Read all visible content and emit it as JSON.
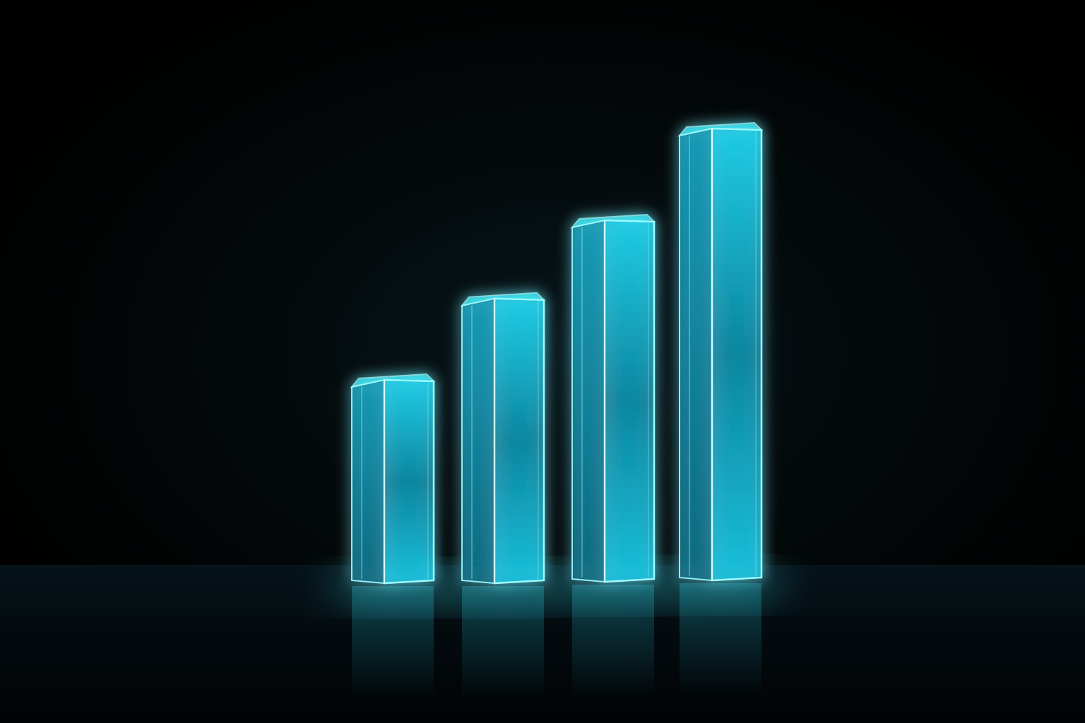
{
  "colors": {
    "glow": "#3ff2ff",
    "edge": "#9ffbff",
    "face": "#16b8d6",
    "side": "#0b7e98"
  },
  "bars": [
    {
      "id": "bar-1",
      "level": 0.45
    },
    {
      "id": "bar-2",
      "level": 0.63
    },
    {
      "id": "bar-3",
      "level": 0.8
    },
    {
      "id": "bar-4",
      "level": 1.0
    }
  ]
}
